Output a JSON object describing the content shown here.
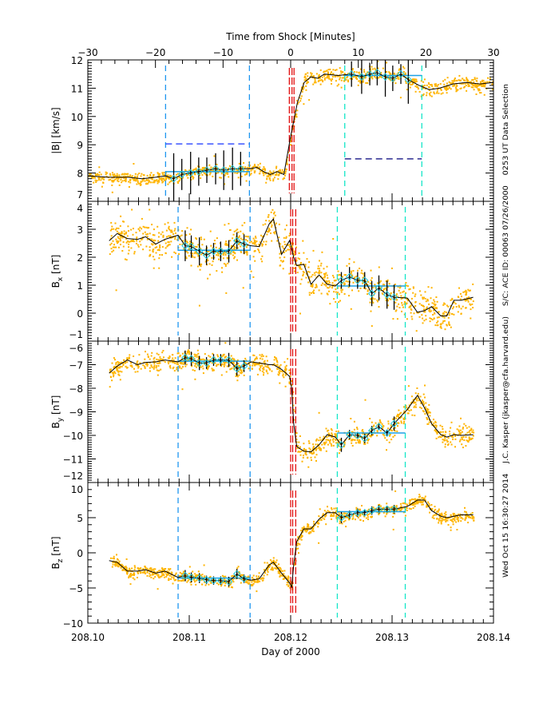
{
  "chart_data": {
    "type": "scatter",
    "top_axis": {
      "title": "Time from Shock [Minutes]",
      "range": [
        -30,
        30
      ],
      "ticks": [
        -30,
        -20,
        -10,
        0,
        10,
        20,
        30
      ],
      "tick_labels": [
        "−30",
        "−20",
        "−10",
        "0",
        "10",
        "20",
        "30"
      ]
    },
    "bottom_axis": {
      "title": "Day of 2000",
      "range": [
        208.1,
        208.14
      ],
      "ticks": [
        208.1,
        208.11,
        208.12,
        208.13,
        208.14
      ],
      "tick_labels": [
        "208.10",
        "208.11",
        "208.12",
        "208.13",
        "208.14"
      ]
    },
    "colors": {
      "data_points": "#ffb400",
      "average_line": "#000000",
      "mean_line": "#1ea0e6",
      "upstream_bounds": "#1e96f0",
      "downstream_bounds": "#14e6c8",
      "shock_lines": "#e00000",
      "reference_upstream": "#1432ff",
      "reference_downstream": "#00007a",
      "diamonds": "#1ec8e6"
    },
    "panels": [
      {
        "ylabel": "|B| [km/s]",
        "ylabel_base": "|B| [km/s]",
        "ylabel_sub": "",
        "ylabel_unit": "",
        "x_units": "minutes",
        "ylim": [
          7,
          12
        ],
        "yticks": [
          7,
          8,
          9,
          10,
          11,
          12
        ],
        "ytick_labels": [
          "7",
          "8",
          "9",
          "10",
          "11",
          "12"
        ],
        "trace": {
          "x": [
            -30,
            -27,
            -24,
            -22,
            -20,
            -18.5,
            -17.3,
            -16.1,
            -14.8,
            -13.6,
            -12.4,
            -11.1,
            -9.9,
            -8.6,
            -7.4,
            -6,
            -5,
            -4,
            -3,
            -2,
            -1,
            0,
            1,
            2,
            3,
            4,
            5,
            7,
            9,
            10.5,
            11.7,
            12.8,
            14,
            15.1,
            16.3,
            17.4,
            19,
            20.5,
            22,
            24,
            26,
            28,
            30
          ],
          "y": [
            7.9,
            7.85,
            7.85,
            7.8,
            7.85,
            7.9,
            7.8,
            7.95,
            8.0,
            8.05,
            8.1,
            8.15,
            8.1,
            8.15,
            8.15,
            8.15,
            8.2,
            8.05,
            7.95,
            8.05,
            7.95,
            9.3,
            10.5,
            11.2,
            11.4,
            11.35,
            11.5,
            11.45,
            11.5,
            11.4,
            11.5,
            11.55,
            11.4,
            11.35,
            11.5,
            11.3,
            11.1,
            10.95,
            11.0,
            11.15,
            11.2,
            11.15,
            11.2
          ]
        },
        "errorbars": [
          [
            -17.3,
            7.8,
            0.9
          ],
          [
            -16.1,
            7.95,
            0.55
          ],
          [
            -14.8,
            8.0,
            0.75
          ],
          [
            -13.6,
            8.05,
            0.5
          ],
          [
            -12.4,
            8.1,
            0.45
          ],
          [
            -11.1,
            8.15,
            0.55
          ],
          [
            -9.9,
            8.1,
            0.7
          ],
          [
            -8.6,
            8.15,
            0.75
          ],
          [
            -7.4,
            8.15,
            0.6
          ],
          [
            9,
            11.5,
            0.45
          ],
          [
            10.5,
            11.4,
            0.6
          ],
          [
            11.7,
            11.5,
            0.4
          ],
          [
            12.8,
            11.55,
            0.45
          ],
          [
            14,
            11.4,
            0.7
          ],
          [
            15.1,
            11.35,
            0.45
          ],
          [
            16.3,
            11.5,
            0.35
          ],
          [
            17.4,
            11.3,
            0.85
          ]
        ],
        "mean_upstream": {
          "x": [
            -18.5,
            -6.1
          ],
          "y": 8.05
        },
        "mean_downstream": {
          "x": [
            8.0,
            19.4
          ],
          "y": 11.45
        },
        "reference_upstream": {
          "x": [
            -18.5,
            -6.1
          ],
          "y": 9.03
        },
        "reference_downstream": {
          "x": [
            8.0,
            19.4
          ],
          "y": 8.5
        },
        "vlines": {
          "upstream": [
            -18.5,
            -6.1
          ],
          "shock": [
            -0.2,
            0.2,
            0.5
          ],
          "downstream": [
            8.0,
            19.4
          ]
        }
      },
      {
        "ylabel": "Bx [nT]",
        "ylabel_base": "B",
        "ylabel_sub": "x",
        "ylabel_unit": " [nT]",
        "x_units": "day",
        "ylim": [
          -1,
          4
        ],
        "yticks": [
          -1,
          0,
          1,
          2,
          3,
          4
        ],
        "ytick_labels": [
          "−1",
          "0",
          "1",
          "2",
          "3",
          "4"
        ],
        "trace": {
          "x": [
            208.1021,
            208.1029,
            208.1039,
            208.1049,
            208.1057,
            208.1067,
            208.1076,
            208.1089,
            208.1096,
            208.1102,
            208.111,
            208.1117,
            208.1124,
            208.1131,
            208.1139,
            208.1147,
            208.1154,
            208.1161,
            208.1169,
            208.1179,
            208.1183,
            208.1191,
            208.1199,
            208.1201,
            208.1203,
            208.1206,
            208.1213,
            208.122,
            208.1228,
            208.1236,
            208.1244,
            208.125,
            208.1258,
            208.1266,
            208.1273,
            208.128,
            208.1287,
            208.1295,
            208.1302,
            208.1315,
            208.1325,
            208.1332,
            208.1339,
            208.1348,
            208.1354,
            208.1361,
            208.1368,
            208.138
          ],
          "y": [
            2.59,
            2.85,
            2.67,
            2.64,
            2.73,
            2.47,
            2.64,
            2.79,
            2.41,
            2.38,
            2.21,
            2.07,
            2.21,
            2.21,
            2.21,
            2.59,
            2.47,
            2.41,
            2.38,
            3.2,
            3.37,
            2.1,
            2.6,
            2.3,
            2.0,
            1.7,
            1.75,
            1.03,
            1.37,
            1.03,
            0.97,
            1.17,
            1.3,
            1.17,
            1.17,
            0.7,
            0.9,
            0.66,
            0.57,
            0.54,
            0.03,
            0.09,
            0.23,
            -0.1,
            -0.1,
            0.46,
            0.46,
            0.57
          ]
        },
        "errorbars": [
          [
            208.1096,
            2.41,
            0.55
          ],
          [
            208.1102,
            2.38,
            0.4
          ],
          [
            208.111,
            2.21,
            0.5
          ],
          [
            208.1117,
            2.07,
            0.35
          ],
          [
            208.1124,
            2.21,
            0.3
          ],
          [
            208.1131,
            2.21,
            0.35
          ],
          [
            208.1139,
            2.21,
            0.4
          ],
          [
            208.1147,
            2.59,
            0.3
          ],
          [
            208.1154,
            2.47,
            0.35
          ],
          [
            208.125,
            1.17,
            0.3
          ],
          [
            208.1258,
            1.3,
            0.35
          ],
          [
            208.1266,
            1.17,
            0.3
          ],
          [
            208.1273,
            1.17,
            0.3
          ],
          [
            208.128,
            0.7,
            0.45
          ],
          [
            208.1287,
            0.9,
            0.45
          ],
          [
            208.1295,
            0.66,
            0.5
          ],
          [
            208.1302,
            0.57,
            0.45
          ]
        ],
        "mean_upstream": {
          "x": [
            208.1089,
            208.116
          ],
          "y": 2.25
        },
        "mean_downstream": {
          "x": [
            208.1246,
            208.1313
          ],
          "y": 0.97
        },
        "vlines": {
          "upstream": [
            208.1089,
            208.116
          ],
          "shock": [
            208.12,
            208.1202,
            208.1205
          ],
          "downstream": [
            208.1246,
            208.1313
          ]
        }
      },
      {
        "ylabel": "By [nT]",
        "ylabel_base": "B",
        "ylabel_sub": "y",
        "ylabel_unit": " [nT]",
        "x_units": "day",
        "ylim": [
          -12,
          -6
        ],
        "yticks": [
          -12,
          -11,
          -10,
          -9,
          -8,
          -7,
          -6
        ],
        "ytick_labels": [
          "−12",
          "−11",
          "−10",
          "−9",
          "−8",
          "−7",
          "−6"
        ],
        "trace": {
          "x": [
            208.1021,
            208.1029,
            208.1039,
            208.1049,
            208.1057,
            208.1067,
            208.1076,
            208.1089,
            208.1096,
            208.1102,
            208.111,
            208.1117,
            208.1124,
            208.1131,
            208.1139,
            208.1147,
            208.1154,
            208.1161,
            208.1169,
            208.1179,
            208.1183,
            208.1191,
            208.1199,
            208.1201,
            208.1203,
            208.1206,
            208.1213,
            208.122,
            208.1228,
            208.1236,
            208.1244,
            208.125,
            208.1258,
            208.1266,
            208.1273,
            208.128,
            208.1287,
            208.1295,
            208.1302,
            208.1315,
            208.1325,
            208.1332,
            208.1339,
            208.1348,
            208.1354,
            208.1361,
            208.1368,
            208.138
          ],
          "y": [
            -7.36,
            -7.06,
            -6.8,
            -7.0,
            -6.9,
            -6.88,
            -6.8,
            -6.88,
            -6.7,
            -6.75,
            -6.93,
            -6.93,
            -6.8,
            -6.8,
            -6.8,
            -7.17,
            -7.06,
            -6.88,
            -6.93,
            -7.0,
            -7.0,
            -7.2,
            -7.5,
            -8.0,
            -9.5,
            -10.47,
            -10.67,
            -10.7,
            -10.4,
            -9.97,
            -10.07,
            -10.4,
            -9.97,
            -10.0,
            -10.13,
            -9.8,
            -9.63,
            -9.9,
            -9.5,
            -8.9,
            -8.3,
            -8.83,
            -9.5,
            -9.97,
            -10.07,
            -9.97,
            -10.0,
            -9.97
          ]
        },
        "errorbars": [
          [
            208.1096,
            -6.7,
            0.3
          ],
          [
            208.1102,
            -6.75,
            0.3
          ],
          [
            208.111,
            -6.93,
            0.3
          ],
          [
            208.1117,
            -6.93,
            0.25
          ],
          [
            208.1124,
            -6.8,
            0.25
          ],
          [
            208.1131,
            -6.8,
            0.25
          ],
          [
            208.1139,
            -6.8,
            0.3
          ],
          [
            208.1147,
            -7.17,
            0.3
          ],
          [
            208.1154,
            -7.06,
            0.25
          ],
          [
            208.125,
            -10.4,
            0.3
          ],
          [
            208.1258,
            -9.97,
            0.2
          ],
          [
            208.1266,
            -10.0,
            0.15
          ],
          [
            208.1273,
            -10.13,
            0.2
          ],
          [
            208.128,
            -9.8,
            0.2
          ],
          [
            208.1287,
            -9.63,
            0.15
          ],
          [
            208.1295,
            -9.9,
            0.15
          ],
          [
            208.1302,
            -9.5,
            0.3
          ]
        ],
        "mean_upstream": {
          "x": [
            208.1089,
            208.116
          ],
          "y": -6.85
        },
        "mean_downstream": {
          "x": [
            208.1246,
            208.1313
          ],
          "y": -9.9
        },
        "vlines": {
          "upstream": [
            208.1089,
            208.116
          ],
          "shock": [
            208.12,
            208.1202,
            208.1205
          ],
          "downstream": [
            208.1246,
            208.1313
          ]
        }
      },
      {
        "ylabel": "Bz [nT]",
        "ylabel_base": "B",
        "ylabel_sub": "z",
        "ylabel_unit": " [nT]",
        "x_units": "day",
        "ylim": [
          -10,
          10
        ],
        "yticks": [
          -10,
          -5,
          0,
          5,
          10
        ],
        "ytick_labels": [
          "−10",
          "−5",
          "0",
          "5",
          "10"
        ],
        "trace": {
          "x": [
            208.1021,
            208.1029,
            208.1039,
            208.1049,
            208.1057,
            208.1067,
            208.1076,
            208.1089,
            208.1096,
            208.1102,
            208.111,
            208.1117,
            208.1124,
            208.1131,
            208.1139,
            208.1147,
            208.1154,
            208.1161,
            208.1169,
            208.1179,
            208.1183,
            208.1191,
            208.1199,
            208.1201,
            208.1203,
            208.1206,
            208.1213,
            208.122,
            208.1228,
            208.1236,
            208.1244,
            208.125,
            208.1258,
            208.1266,
            208.1273,
            208.128,
            208.1287,
            208.1295,
            208.1302,
            208.1315,
            208.1325,
            208.1332,
            208.1339,
            208.1348,
            208.1354,
            208.1361,
            208.1368,
            208.138
          ],
          "y": [
            -1.1,
            -1.35,
            -2.6,
            -2.6,
            -2.4,
            -2.9,
            -2.6,
            -3.5,
            -3.25,
            -3.5,
            -3.6,
            -3.85,
            -3.95,
            -3.95,
            -4.1,
            -3.0,
            -3.7,
            -3.9,
            -3.7,
            -1.7,
            -1.35,
            -2.9,
            -4.3,
            -4.9,
            -1.7,
            1.6,
            3.4,
            3.4,
            4.8,
            5.7,
            5.7,
            5.0,
            5.4,
            5.7,
            5.7,
            6.0,
            6.2,
            6.2,
            6.2,
            6.6,
            7.5,
            7.5,
            6.0,
            5.2,
            5.0,
            5.2,
            5.4,
            5.4
          ]
        },
        "errorbars": [
          [
            208.1096,
            -3.25,
            0.8
          ],
          [
            208.1102,
            -3.5,
            0.7
          ],
          [
            208.111,
            -3.6,
            0.7
          ],
          [
            208.1117,
            -3.85,
            0.6
          ],
          [
            208.1124,
            -3.95,
            0.6
          ],
          [
            208.1131,
            -3.95,
            0.6
          ],
          [
            208.1139,
            -4.1,
            0.7
          ],
          [
            208.1147,
            -3.0,
            0.7
          ],
          [
            208.1154,
            -3.7,
            0.6
          ],
          [
            208.125,
            5.0,
            0.8
          ],
          [
            208.1258,
            5.4,
            0.6
          ],
          [
            208.1266,
            5.7,
            0.6
          ],
          [
            208.1273,
            5.7,
            0.5
          ],
          [
            208.128,
            6.0,
            0.6
          ],
          [
            208.1287,
            6.2,
            0.6
          ],
          [
            208.1295,
            6.2,
            0.5
          ],
          [
            208.1302,
            6.2,
            0.6
          ]
        ],
        "mean_upstream": {
          "x": [
            208.1089,
            208.116
          ],
          "y": -3.6
        },
        "mean_downstream": {
          "x": [
            208.1246,
            208.1313
          ],
          "y": 5.85
        },
        "vlines": {
          "upstream": [
            208.1089,
            208.116
          ],
          "shock": [
            208.12,
            208.1202,
            208.1205
          ],
          "downstream": [
            208.1246,
            208.1313
          ]
        }
      }
    ]
  },
  "info_text": [
    "Wed Oct 15 16:30:27 2014",
    "J.C. Kasper (jkasper@cfa.harvard.edu)",
    "S/C: ACE ID: 00063 07/26/2000",
    "0253 UT Data Selection"
  ]
}
